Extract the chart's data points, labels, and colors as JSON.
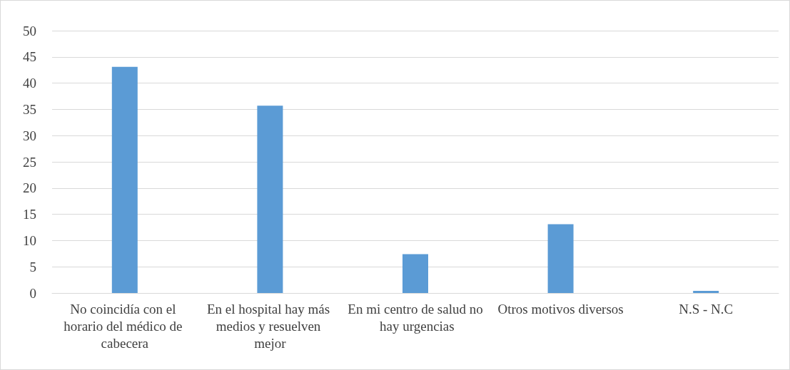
{
  "chart_data": {
    "type": "bar",
    "categories": [
      "No coincidía con el horario del médico de cabecera",
      "En el hospital hay más medios y resuelven mejor",
      "En mi centro de salud no hay urgencias",
      "Otros motivos diversos",
      "N.S - N.C"
    ],
    "values": [
      43.1,
      35.7,
      7.4,
      13.1,
      0.4
    ],
    "color": "#5b9bd5",
    "ylim": [
      0,
      50
    ],
    "yticks": [
      0,
      5,
      10,
      15,
      20,
      25,
      30,
      35,
      40,
      45,
      50
    ],
    "grid": "y"
  }
}
